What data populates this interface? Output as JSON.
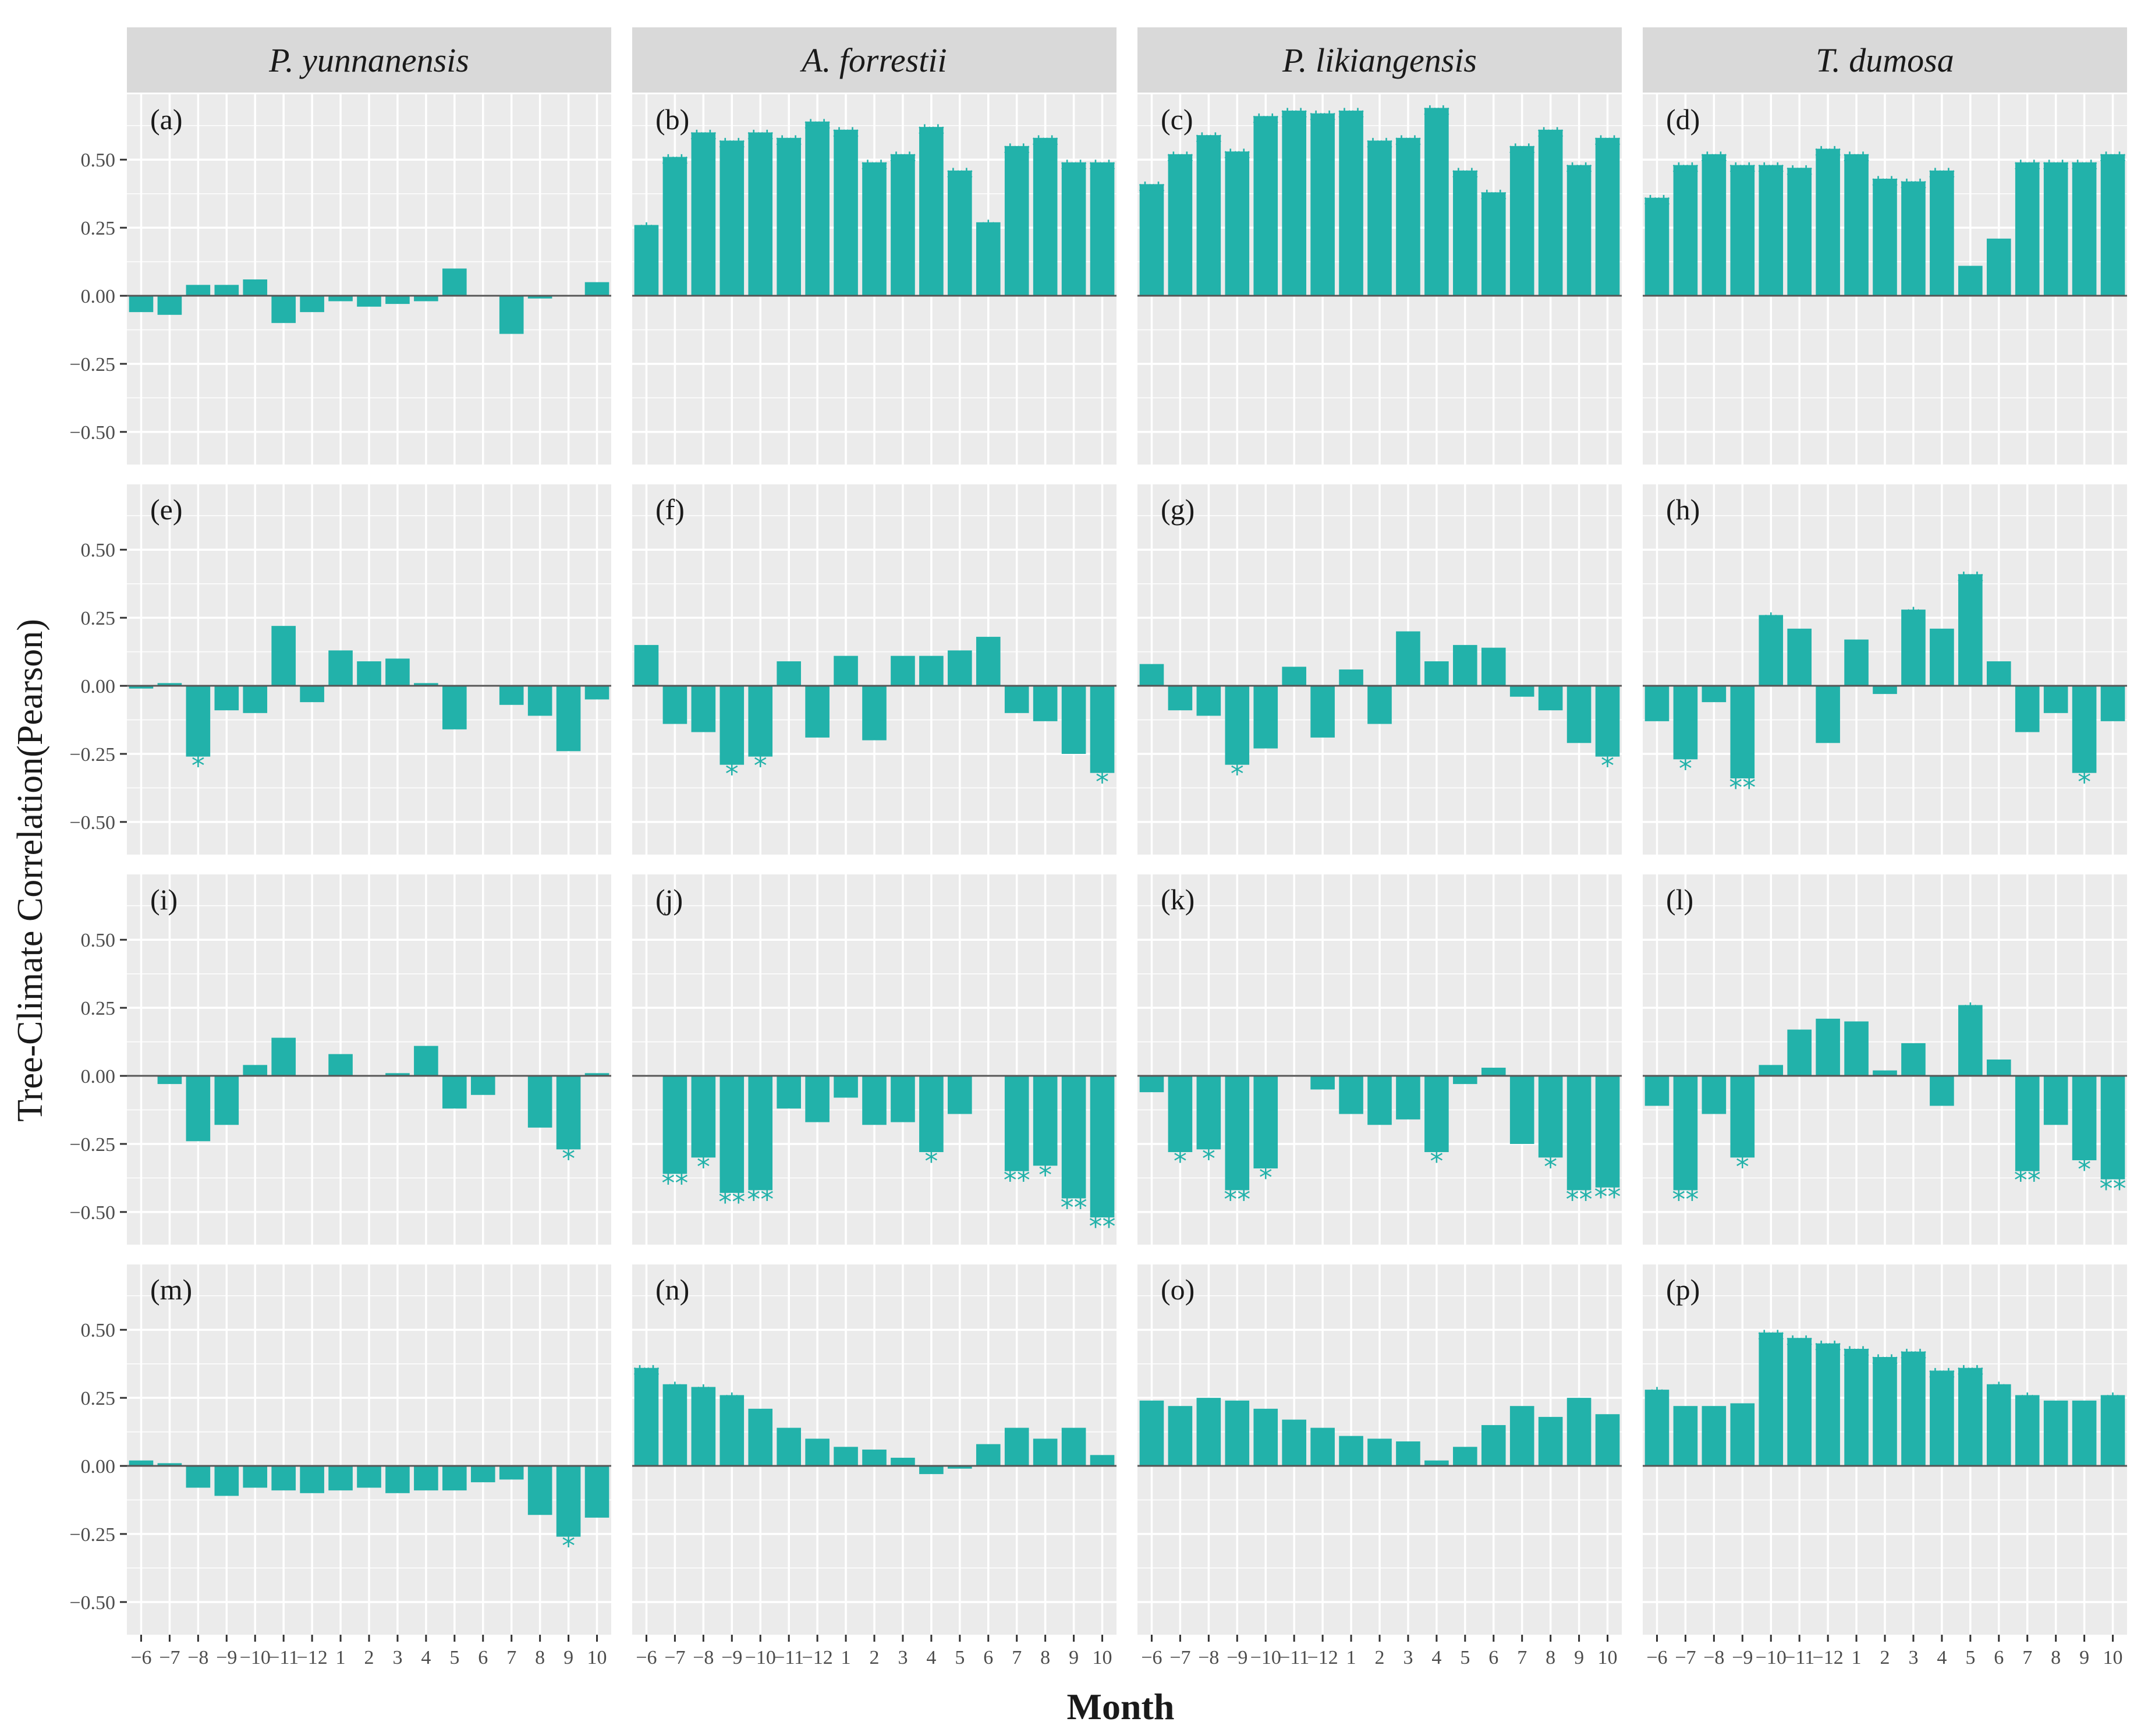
{
  "chart_data": {
    "type": "bar",
    "title": "",
    "xlabel": "Month",
    "ylabel": "Tree-Climate Correlation(Pearson)",
    "ylim": [
      -0.62,
      0.74
    ],
    "yticks": [
      0.5,
      0.25,
      0.0,
      -0.25,
      -0.5
    ],
    "ytick_labels": [
      "0.50",
      "0.25",
      "0.00",
      "−0.25",
      "−0.50"
    ],
    "categories": [
      "−6",
      "−7",
      "−8",
      "−9",
      "−10",
      "−11",
      "−12",
      "1",
      "2",
      "3",
      "4",
      "5",
      "6",
      "7",
      "8",
      "9",
      "10"
    ],
    "bar_color": "#22B2AA",
    "panel_bg": "#EBEBEB",
    "strip_bg": "#D9D9D9",
    "grid_color": "#FFFFFF",
    "species": [
      "P. yunnanensis",
      "A. forrestii",
      "P. likiangensis",
      "T. dumosa"
    ],
    "panels": [
      {
        "label": "(a)",
        "values": [
          -0.06,
          -0.07,
          0.04,
          0.04,
          0.06,
          -0.1,
          -0.06,
          -0.02,
          -0.04,
          -0.03,
          -0.02,
          0.1,
          0.0,
          -0.14,
          -0.01,
          0.0,
          0.05
        ],
        "sig": [
          "",
          "",
          "",
          "",
          "",
          "",
          "",
          "",
          "",
          "",
          "",
          "",
          "",
          "",
          "",
          "",
          ""
        ]
      },
      {
        "label": "(b)",
        "values": [
          0.26,
          0.51,
          0.6,
          0.57,
          0.6,
          0.58,
          0.64,
          0.61,
          0.49,
          0.52,
          0.62,
          0.46,
          0.27,
          0.55,
          0.58,
          0.49,
          0.49
        ],
        "sig": [
          "*",
          "**",
          "**",
          "**",
          "**",
          "**",
          "**",
          "**",
          "**",
          "**",
          "**",
          "**",
          "*",
          "**",
          "**",
          "**",
          "**"
        ]
      },
      {
        "label": "(c)",
        "values": [
          0.41,
          0.52,
          0.59,
          0.53,
          0.66,
          0.68,
          0.67,
          0.68,
          0.57,
          0.58,
          0.69,
          0.46,
          0.38,
          0.55,
          0.61,
          0.48,
          0.58
        ],
        "sig": [
          "**",
          "**",
          "**",
          "**",
          "**",
          "**",
          "**",
          "**",
          "**",
          "**",
          "**",
          "**",
          "**",
          "**",
          "**",
          "**",
          "**"
        ]
      },
      {
        "label": "(d)",
        "values": [
          0.36,
          0.48,
          0.52,
          0.48,
          0.48,
          0.47,
          0.54,
          0.52,
          0.43,
          0.42,
          0.46,
          0.11,
          0.21,
          0.49,
          0.49,
          0.49,
          0.52
        ],
        "sig": [
          "**",
          "**",
          "**",
          "**",
          "**",
          "**",
          "**",
          "**",
          "**",
          "**",
          "**",
          "",
          "",
          "**",
          "**",
          "**",
          "**"
        ]
      },
      {
        "label": "(e)",
        "values": [
          -0.01,
          0.01,
          -0.26,
          -0.09,
          -0.1,
          0.22,
          -0.06,
          0.13,
          0.09,
          0.1,
          0.01,
          -0.16,
          0.0,
          -0.07,
          -0.11,
          -0.24,
          -0.05
        ],
        "sig": [
          "",
          "",
          "*",
          "",
          "",
          "",
          "",
          "",
          "",
          "",
          "",
          "",
          "",
          "",
          "",
          "",
          ""
        ]
      },
      {
        "label": "(f)",
        "values": [
          0.15,
          -0.14,
          -0.17,
          -0.29,
          -0.26,
          0.09,
          -0.19,
          0.11,
          -0.2,
          0.11,
          0.11,
          0.13,
          0.18,
          -0.1,
          -0.13,
          -0.25,
          -0.32
        ],
        "sig": [
          "",
          "",
          "",
          "*",
          "*",
          "",
          "",
          "",
          "",
          "",
          "",
          "",
          "",
          "",
          "",
          "",
          "*"
        ]
      },
      {
        "label": "(g)",
        "values": [
          0.08,
          -0.09,
          -0.11,
          -0.29,
          -0.23,
          0.07,
          -0.19,
          0.06,
          -0.14,
          0.2,
          0.09,
          0.15,
          0.14,
          -0.04,
          -0.09,
          -0.21,
          -0.26
        ],
        "sig": [
          "",
          "",
          "",
          "*",
          "",
          "",
          "",
          "",
          "",
          "",
          "",
          "",
          "",
          "",
          "",
          "",
          "*"
        ]
      },
      {
        "label": "(h)",
        "values": [
          -0.13,
          -0.27,
          -0.06,
          -0.34,
          0.26,
          0.21,
          -0.21,
          0.17,
          -0.03,
          0.28,
          0.21,
          0.41,
          0.09,
          -0.17,
          -0.1,
          -0.32,
          -0.13
        ],
        "sig": [
          "",
          "*",
          "",
          "**",
          "*",
          "",
          "",
          "",
          "",
          "*",
          "",
          "**",
          "",
          "",
          "",
          "*",
          ""
        ]
      },
      {
        "label": "(i)",
        "values": [
          0.0,
          -0.03,
          -0.24,
          -0.18,
          0.04,
          0.14,
          0.0,
          0.08,
          0.0,
          0.01,
          0.11,
          -0.12,
          -0.07,
          0.0,
          -0.19,
          -0.27,
          0.01
        ],
        "sig": [
          "",
          "",
          "",
          "",
          "",
          "",
          "",
          "",
          "",
          "",
          "",
          "",
          "",
          "",
          "",
          "*",
          ""
        ]
      },
      {
        "label": "(j)",
        "values": [
          0.0,
          -0.36,
          -0.3,
          -0.43,
          -0.42,
          -0.12,
          -0.17,
          -0.08,
          -0.18,
          -0.17,
          -0.28,
          -0.14,
          0.0,
          -0.35,
          -0.33,
          -0.45,
          -0.52
        ],
        "sig": [
          "",
          "**",
          "*",
          "**",
          "**",
          "",
          "",
          "",
          "",
          "",
          "*",
          "",
          "",
          "**",
          "*",
          "**",
          "**"
        ]
      },
      {
        "label": "(k)",
        "values": [
          -0.06,
          -0.28,
          -0.27,
          -0.42,
          -0.34,
          0.0,
          -0.05,
          -0.14,
          -0.18,
          -0.16,
          -0.28,
          -0.03,
          0.03,
          -0.25,
          -0.3,
          -0.42,
          -0.41
        ],
        "sig": [
          "",
          "*",
          "*",
          "**",
          "*",
          "",
          "",
          "",
          "",
          "",
          "*",
          "",
          "",
          "",
          "*",
          "**",
          "**"
        ]
      },
      {
        "label": "(l)",
        "values": [
          -0.11,
          -0.42,
          -0.14,
          -0.3,
          0.04,
          0.17,
          0.21,
          0.2,
          0.02,
          0.12,
          -0.11,
          0.26,
          0.06,
          -0.35,
          -0.18,
          -0.31,
          -0.38
        ],
        "sig": [
          "",
          "**",
          "",
          "*",
          "",
          "",
          "",
          "",
          "",
          "",
          "",
          "*",
          "",
          "**",
          "",
          "*",
          "**"
        ]
      },
      {
        "label": "(m)",
        "values": [
          0.02,
          0.01,
          -0.08,
          -0.11,
          -0.08,
          -0.09,
          -0.1,
          -0.09,
          -0.08,
          -0.1,
          -0.09,
          -0.09,
          -0.06,
          -0.05,
          -0.18,
          -0.26,
          -0.19
        ],
        "sig": [
          "",
          "",
          "",
          "",
          "",
          "",
          "",
          "",
          "",
          "",
          "",
          "",
          "",
          "",
          "",
          "*",
          ""
        ]
      },
      {
        "label": "(n)",
        "values": [
          0.36,
          0.3,
          0.29,
          0.26,
          0.21,
          0.14,
          0.1,
          0.07,
          0.06,
          0.03,
          -0.03,
          -0.01,
          0.08,
          0.14,
          0.1,
          0.14,
          0.04
        ],
        "sig": [
          "**",
          "*",
          "*",
          "*",
          "",
          "",
          "",
          "",
          "",
          "",
          "",
          "",
          "",
          "",
          "",
          "",
          ""
        ]
      },
      {
        "label": "(o)",
        "values": [
          0.24,
          0.22,
          0.25,
          0.24,
          0.21,
          0.17,
          0.14,
          0.11,
          0.1,
          0.09,
          0.02,
          0.07,
          0.15,
          0.22,
          0.18,
          0.25,
          0.19
        ],
        "sig": [
          "",
          "",
          "",
          "",
          "",
          "",
          "",
          "",
          "",
          "",
          "",
          "",
          "",
          "",
          "",
          "",
          ""
        ]
      },
      {
        "label": "(p)",
        "values": [
          0.28,
          0.22,
          0.22,
          0.23,
          0.49,
          0.47,
          0.45,
          0.43,
          0.4,
          0.42,
          0.35,
          0.36,
          0.3,
          0.26,
          0.24,
          0.24,
          0.26
        ],
        "sig": [
          "*",
          "",
          "",
          "",
          "**",
          "**",
          "**",
          "**",
          "**",
          "**",
          "**",
          "**",
          "*",
          "*",
          "",
          "",
          "*"
        ]
      }
    ]
  }
}
